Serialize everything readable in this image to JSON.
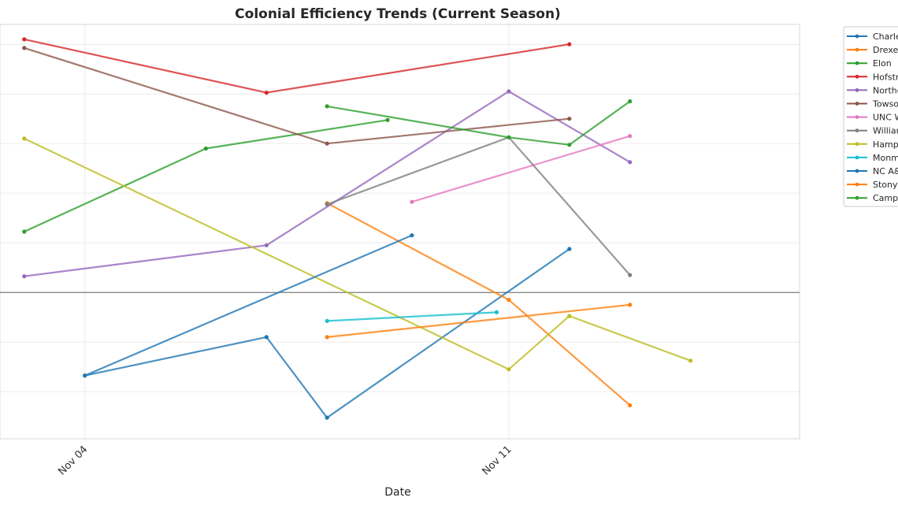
{
  "chart_data": {
    "type": "line",
    "title": "Colonial Efficiency Trends (Current Season)",
    "xlabel": "Date",
    "ylabel": "",
    "x_ticks": [
      {
        "day": 4,
        "label": "Nov 04"
      },
      {
        "day": 11,
        "label": "Nov 11"
      }
    ],
    "xlim": [
      2.6,
      15.8
    ],
    "ylim": [
      -5.9,
      10.8
    ],
    "reference_line_y": 0,
    "grid": true,
    "legend_position": "outside-right",
    "series": [
      {
        "name": "Charleston",
        "color": "#1f77b4",
        "points": [
          [
            4,
            -3.35
          ],
          [
            7,
            -1.8
          ],
          [
            8,
            -5.05
          ],
          [
            12,
            1.75
          ]
        ]
      },
      {
        "name": "Drexel",
        "color": "#ff7f0e",
        "points": [
          [
            8,
            3.6
          ],
          [
            11,
            -0.3
          ],
          [
            13,
            -4.55
          ]
        ]
      },
      {
        "name": "Elon",
        "color": "#2ca02c",
        "points": [
          [
            3,
            2.45
          ],
          [
            6,
            5.8
          ],
          [
            9,
            6.95
          ]
        ]
      },
      {
        "name": "Hofstra",
        "color": "#d62728",
        "points": [
          [
            3,
            10.2
          ],
          [
            7,
            8.05
          ],
          [
            12,
            10.0
          ]
        ]
      },
      {
        "name": "Northeastern",
        "color": "#9467bd",
        "points": [
          [
            3,
            0.65
          ],
          [
            7,
            1.9
          ],
          [
            11,
            8.1
          ],
          [
            13,
            5.25
          ]
        ]
      },
      {
        "name": "Towson",
        "color": "#8c564b",
        "points": [
          [
            3,
            9.85
          ],
          [
            8,
            6.0
          ],
          [
            12,
            7.0
          ]
        ]
      },
      {
        "name": "UNC Wilmington",
        "color": "#e377c2",
        "points": [
          [
            9.4,
            3.65
          ],
          [
            13,
            6.3
          ]
        ]
      },
      {
        "name": "William & Mary",
        "color": "#7f7f7f",
        "points": [
          [
            8,
            3.55
          ],
          [
            11,
            6.25
          ],
          [
            13,
            0.7
          ]
        ]
      },
      {
        "name": "Hampton",
        "color": "#bcbd22",
        "points": [
          [
            3,
            6.2
          ],
          [
            11,
            -3.1
          ],
          [
            12,
            -0.95
          ],
          [
            14,
            -2.75
          ]
        ]
      },
      {
        "name": "Monmouth",
        "color": "#17becf",
        "points": [
          [
            8,
            -1.15
          ],
          [
            10.8,
            -0.8
          ]
        ]
      },
      {
        "name": "NC A&T",
        "color": "#1f77b4",
        "points": [
          [
            4,
            -3.35
          ],
          [
            9.4,
            2.3
          ]
        ]
      },
      {
        "name": "Stony Brook",
        "color": "#ff7f0e",
        "points": [
          [
            8,
            -1.8
          ],
          [
            13,
            -0.5
          ]
        ]
      },
      {
        "name": "Campbell",
        "color": "#2ca02c",
        "points": [
          [
            8,
            7.5
          ],
          [
            11,
            6.25
          ],
          [
            12,
            5.95
          ],
          [
            13,
            7.7
          ]
        ]
      }
    ]
  }
}
